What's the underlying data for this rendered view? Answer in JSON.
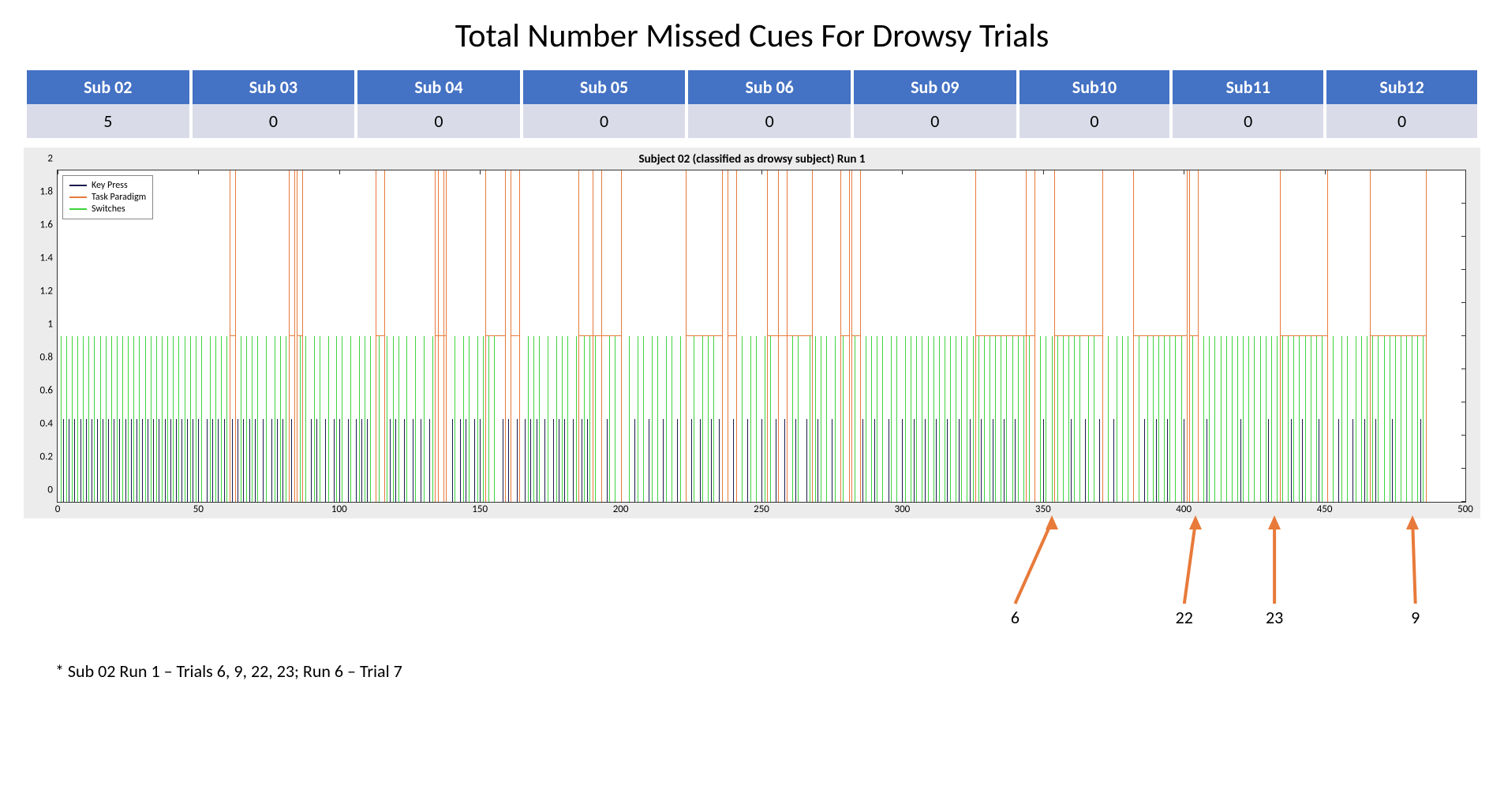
{
  "title": "Total Number Missed Cues For Drowsy Trials",
  "table": {
    "header_bg": "#4472c4",
    "header_color": "#ffffff",
    "cell_bg": "#d9dce8",
    "columns": [
      "Sub 02",
      "Sub 03",
      "Sub 04",
      "Sub 05",
      "Sub 06",
      "Sub 09",
      "Sub10",
      "Sub11",
      "Sub12"
    ],
    "values": [
      "5",
      "0",
      "0",
      "0",
      "0",
      "0",
      "0",
      "0",
      "0"
    ]
  },
  "chart": {
    "title": "Subject 02 (classified as drowsy subject) Run 1",
    "background_color": "#ececec",
    "plot_bg": "#ffffff",
    "axis_color": "#333333",
    "xlim": [
      0,
      500
    ],
    "ylim": [
      0,
      2
    ],
    "yticks": [
      0,
      0.2,
      0.4,
      0.6,
      0.8,
      1,
      1.2,
      1.4,
      1.6,
      1.8,
      2
    ],
    "xticks": [
      0,
      50,
      100,
      150,
      200,
      250,
      300,
      350,
      400,
      450,
      500
    ],
    "legend": {
      "items": [
        {
          "label": "Key Press",
          "color": "#1a1a4d"
        },
        {
          "label": "Task Paradigm",
          "color": "#e87a3a"
        },
        {
          "label": "Switches",
          "color": "#3ed43e"
        }
      ]
    },
    "series": {
      "key_press": {
        "color": "#1a1a4d",
        "height": 0.5,
        "line_width": 1,
        "x": [
          2,
          4,
          6,
          8,
          10,
          12,
          14,
          16,
          18,
          20,
          22,
          24,
          26,
          28,
          30,
          32,
          34,
          36,
          38,
          40,
          42,
          44,
          46,
          48,
          50,
          53,
          55,
          57,
          59,
          62,
          64,
          66,
          68,
          70,
          73,
          76,
          78,
          80,
          83,
          90,
          92,
          95,
          98,
          100,
          103,
          106,
          108,
          110,
          113,
          116,
          118,
          120,
          123,
          126,
          129,
          132,
          134,
          137,
          140,
          143,
          145,
          148,
          150,
          158,
          160,
          163,
          166,
          168,
          170,
          173,
          176,
          178,
          180,
          183,
          186,
          188,
          195,
          205,
          210,
          215,
          220,
          225,
          228,
          232,
          235,
          240,
          245,
          250,
          255,
          258,
          262,
          266,
          270,
          275,
          278,
          282,
          286,
          290,
          295,
          300,
          304,
          308,
          312,
          316,
          320,
          324,
          328,
          332,
          336,
          340,
          344,
          350,
          360,
          365,
          370,
          375,
          386,
          390,
          394,
          400,
          408,
          420,
          430,
          438,
          442,
          448,
          455,
          460,
          464,
          468,
          474,
          484
        ]
      },
      "switches": {
        "color": "#3ed43e",
        "height": 1.0,
        "line_width": 1,
        "x": [
          1,
          3,
          5,
          7,
          9,
          11,
          13,
          15,
          17,
          19,
          21,
          23,
          25,
          27,
          29,
          31,
          33,
          35,
          37,
          39,
          41,
          43,
          45,
          47,
          49,
          51,
          54,
          56,
          58,
          60,
          63,
          65,
          67,
          69,
          71,
          74,
          77,
          79,
          81,
          84,
          86,
          88,
          91,
          93,
          96,
          99,
          101,
          104,
          107,
          109,
          111,
          114,
          117,
          119,
          121,
          124,
          127,
          130,
          133,
          135,
          138,
          141,
          144,
          146,
          149,
          151,
          153,
          155,
          159,
          161,
          164,
          167,
          169,
          171,
          174,
          177,
          179,
          181,
          184,
          187,
          189,
          191,
          193,
          196,
          198,
          200,
          203,
          206,
          208,
          211,
          213,
          216,
          218,
          221,
          223,
          226,
          229,
          231,
          233,
          236,
          238,
          241,
          243,
          246,
          248,
          251,
          253,
          256,
          259,
          261,
          263,
          267,
          269,
          271,
          273,
          276,
          279,
          281,
          283,
          285,
          287,
          289,
          291,
          293,
          296,
          298,
          301,
          303,
          305,
          307,
          309,
          311,
          313,
          315,
          317,
          319,
          321,
          323,
          325,
          327,
          329,
          331,
          333,
          335,
          337,
          339,
          341,
          343,
          345,
          347,
          349,
          351,
          353,
          355,
          357,
          359,
          361,
          363,
          366,
          368,
          371,
          373,
          376,
          378,
          380,
          382,
          384,
          387,
          389,
          391,
          393,
          395,
          397,
          399,
          401,
          403,
          405,
          407,
          409,
          411,
          413,
          415,
          417,
          419,
          421,
          423,
          425,
          427,
          429,
          431,
          433,
          435,
          437,
          439,
          441,
          443,
          445,
          447,
          449,
          451,
          453,
          456,
          458,
          461,
          463,
          465,
          467,
          469,
          471,
          473,
          475,
          477,
          479,
          481,
          483,
          485
        ]
      },
      "task_paradigm": {
        "color": "#e87a3a",
        "height": 2.0,
        "line_width": 1,
        "x_pairs": [
          [
            61,
            63
          ],
          [
            82,
            84
          ],
          [
            85,
            87
          ],
          [
            113,
            116
          ],
          [
            134,
            137
          ],
          [
            135,
            138
          ],
          [
            152,
            159
          ],
          [
            161,
            164
          ],
          [
            185,
            200
          ],
          [
            190,
            193
          ],
          [
            223,
            236
          ],
          [
            238,
            241
          ],
          [
            252,
            268
          ],
          [
            256,
            259
          ],
          [
            278,
            281
          ],
          [
            282,
            285
          ],
          [
            326,
            344
          ],
          [
            344,
            347
          ],
          [
            354,
            371
          ],
          [
            382,
            401
          ],
          [
            402,
            405
          ],
          [
            434,
            451
          ],
          [
            466,
            486
          ]
        ]
      }
    }
  },
  "footnote": "* Sub 02 Run 1 – Trials 6, 9, 22, 23; Run 6 – Trial 7",
  "annotations": {
    "arrow_color": "#e87a3a",
    "arrows": [
      {
        "x_tip": 353,
        "x_base": 340,
        "label": "6"
      },
      {
        "x_tip": 404,
        "x_base": 400,
        "label": "22"
      },
      {
        "x_tip": 432,
        "x_base": 432,
        "label": "23"
      },
      {
        "x_tip": 481,
        "x_base": 482,
        "label": "9"
      }
    ]
  }
}
